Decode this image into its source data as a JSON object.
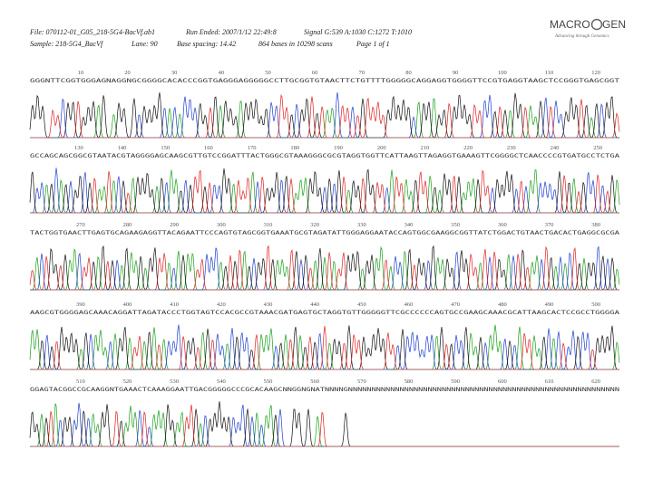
{
  "header": {
    "file": "File: 070112-01_G05_218-5G4-BacVf.ab1",
    "run_ended": "Run Ended: 2007/1/12 22:49:8",
    "signal": "Signal G:539 A:1030 C:1272 T:1010",
    "sample": "Sample: 218-5G4_BacVf",
    "lane": "Lane: 90",
    "base_spacing": "Base spacing: 14.42",
    "bases": "864 bases in 10298 scans",
    "page": "Page 1 of 1"
  },
  "logo": {
    "left": "MACRO",
    "right": "GEN",
    "tagline": "Advancing through Genomics"
  },
  "base_colors": {
    "A": "#1aa01a",
    "C": "#1f3fd0",
    "G": "#111111",
    "T": "#e02020"
  },
  "rows": [
    {
      "positions": [
        10,
        20,
        30,
        40,
        50,
        60,
        70,
        80,
        90,
        100,
        110,
        120
      ],
      "sequence": "GGGNTTCGGTGGGAGNAGGNGCGGGGCACACCCGGTGAGGGAGGGGGCCTTGCGGTGTAACTTCTGTTTTGGGGGCAGGAGGTGGGGTTCCGTGAGGTAAGCTCCGGGTGAGCGGT"
    },
    {
      "positions": [
        130,
        140,
        150,
        160,
        170,
        180,
        190,
        200,
        210,
        220,
        230,
        240,
        250
      ],
      "sequence": "GCCAGCAGCGGCGTAATACGTAGGGGAGCAAGCGTTGTCCGGATTTACTGGGCGTAAAGGGCGCGTAGGTGGTTCATTAAGTTAGAGGTGAAAGTTCGGGGCTCAACCCCGTGATGCCTCTGA"
    },
    {
      "positions": [
        270,
        280,
        290,
        300,
        310,
        320,
        330,
        340,
        350,
        360,
        370,
        380
      ],
      "sequence": "TACTGGTGAACTTGAGTGCAGAAGAGGTTACAGAATTCCCAGTGTAGCGGTGAAATGCGTAGATATTGGGAGGAATACCAGTGGCGAAGGCGGTTATCTGGACTGTAACTGACACTGAGGCGCGA"
    },
    {
      "positions": [
        390,
        400,
        410,
        420,
        430,
        440,
        450,
        460,
        470,
        480,
        490,
        500
      ],
      "sequence": "AAGCGTGGGGAGCAAACAGGATTAGATACCCTGGTAGTCCACGCCGTAAACGATGAGTGCTAGGTGTTGGGGGTTCGCCCCCCAGTGCCGAAGCAAACGCATTAAGCACTCCGCCTGGGGA"
    },
    {
      "positions": [
        510,
        520,
        530,
        540,
        550,
        560,
        570,
        580,
        590,
        600,
        610,
        620
      ],
      "sequence": "GGAGTACGGCCGCAAGGNTGAAACTCAAAGGAATTGACGGGGGCCCGCACAAGCNNGGNGNATNNNNGNNNNNNNNNNNNNNNNNNNNNNNNNNNNNNNNNNNNNNNNNNNNNNNNNNNNNNNNNN"
    }
  ]
}
